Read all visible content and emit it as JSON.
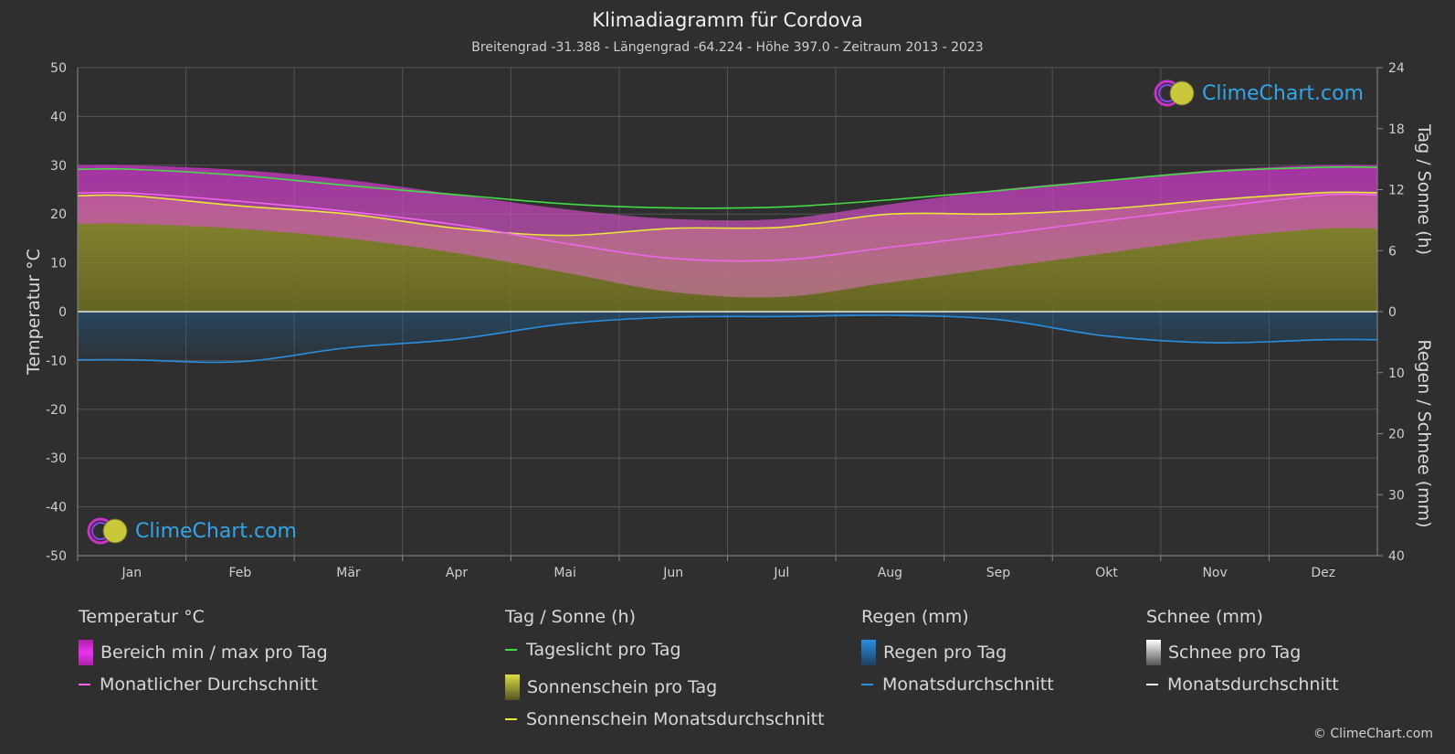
{
  "title": "Klimadiagramm für Cordova",
  "subtitle": "Breitengrad -31.388 - Längengrad -64.224 - Höhe 397.0 - Zeitraum 2013 - 2023",
  "brand": "ClimeChart.com",
  "copyright": "© ClimeChart.com",
  "colors": {
    "background": "#2f2f2f",
    "daylight": "#44dd44",
    "sunshine_avg": "#e8e83a",
    "temp_avg": "#ee66ee",
    "rain_avg": "#2a8fe0",
    "temp_range": "#cc44cc",
    "sunshine_fill": "#8a8a2a",
    "rain_fill": "#1e5a88"
  },
  "legend": {
    "temp": {
      "header": "Temperatur °C",
      "range": "Bereich min / max pro Tag",
      "avg": "Monatlicher Durchschnitt"
    },
    "sun": {
      "header": "Tag / Sonne (h)",
      "daylight": "Tageslicht pro Tag",
      "sunshine": "Sonnenschein pro Tag",
      "sunshine_avg": "Sonnenschein Monatsdurchschnitt"
    },
    "rain": {
      "header": "Regen (mm)",
      "per_day": "Regen pro Tag",
      "avg": "Monatsdurchschnitt"
    },
    "snow": {
      "header": "Schnee (mm)",
      "per_day": "Schnee pro Tag",
      "avg": "Monatsdurchschnitt"
    }
  },
  "chart_data": {
    "type": "line",
    "x_label_months": [
      "Jan",
      "Feb",
      "Mär",
      "Apr",
      "Mai",
      "Jun",
      "Jul",
      "Aug",
      "Sep",
      "Okt",
      "Nov",
      "Dez"
    ],
    "y_left": {
      "label": "Temperatur °C",
      "ticks": [
        "50",
        "40",
        "30",
        "20",
        "10",
        "0",
        "-10",
        "-20",
        "-30",
        "-40",
        "-50"
      ],
      "range": [
        -50,
        50
      ]
    },
    "y_right_top": {
      "label": "Tag / Sonne (h)",
      "ticks": [
        "24",
        "18",
        "12",
        "6",
        "0"
      ],
      "range": [
        0,
        24
      ]
    },
    "y_right_bottom": {
      "label": "Regen / Schnee (mm)",
      "ticks": [
        "0",
        "10",
        "20",
        "30",
        "40"
      ],
      "range": [
        0,
        40
      ]
    },
    "grid": true,
    "series": [
      {
        "name": "Tageslicht pro Tag",
        "unit": "h",
        "values": [
          14.0,
          13.4,
          12.4,
          11.5,
          10.6,
          10.2,
          10.3,
          11.0,
          11.9,
          12.9,
          13.8,
          14.2
        ]
      },
      {
        "name": "Sonnenschein Monatsdurchschnitt",
        "unit": "h",
        "values": [
          11.4,
          10.4,
          9.6,
          8.2,
          7.5,
          8.2,
          8.3,
          9.6,
          9.6,
          10.1,
          11.0,
          11.7
        ]
      },
      {
        "name": "Monatlicher Durchschnitt",
        "unit": "°C",
        "values": [
          24.3,
          22.6,
          20.5,
          17.8,
          14.0,
          10.9,
          10.6,
          13.2,
          15.8,
          18.7,
          21.4,
          23.9
        ]
      },
      {
        "name": "Monatsdurchschnitt",
        "unit": "mm",
        "values": [
          7.9,
          8.2,
          5.9,
          4.5,
          2.0,
          0.9,
          0.8,
          0.6,
          1.3,
          4.0,
          5.1,
          4.6
        ]
      },
      {
        "name": "Bereich min / max pro Tag (max)",
        "unit": "°C",
        "values": [
          30,
          29,
          27,
          24,
          21,
          19,
          19,
          22,
          25,
          27,
          29,
          30
        ]
      },
      {
        "name": "Bereich min / max pro Tag (min)",
        "unit": "°C",
        "values": [
          18,
          17,
          15,
          12,
          8,
          4,
          3,
          6,
          9,
          12,
          15,
          17
        ]
      }
    ]
  }
}
